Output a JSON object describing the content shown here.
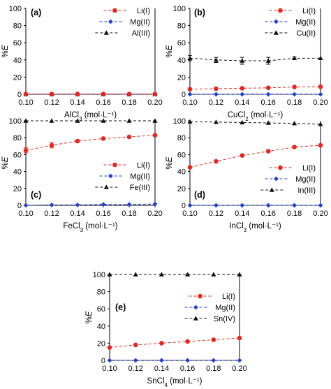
{
  "series_style": [
    {
      "key": "li",
      "color": "#e8251f",
      "marker": "circle",
      "dash": "4,3"
    },
    {
      "key": "mg",
      "color": "#1f3fd6",
      "marker": "diamond",
      "dash": "4,3"
    },
    {
      "key": "m",
      "color": "#111111",
      "marker": "triangle",
      "dash": "4,3"
    }
  ],
  "chart_data": [
    {
      "type": "line",
      "panel_label": "(a)",
      "x": [
        0.1,
        0.12,
        0.14,
        0.16,
        0.18,
        0.2
      ],
      "x_ticks": [
        "0.10",
        "0.12",
        "0.14",
        "0.16",
        "0.18",
        "0.20"
      ],
      "xlabel": {
        "pre": "AlCl",
        "sub": "3",
        "post": " (mol·L⁻¹)"
      },
      "ylabel": {
        "pre": "%",
        "it": "E"
      },
      "y_ticks": [
        "0",
        "20",
        "40",
        "60",
        "80",
        "100"
      ],
      "ylim": [
        0,
        100
      ],
      "legend": [
        "Li(I)",
        "Mg(II)",
        "Al(III)"
      ],
      "series": [
        {
          "name": "Li(I)",
          "values": [
            0.3,
            0.3,
            0.3,
            0.3,
            0.3,
            0.3
          ]
        },
        {
          "name": "Mg(II)",
          "values": [
            0,
            0,
            0,
            0,
            0,
            0
          ]
        },
        {
          "name": "Al(III)",
          "values": [
            0,
            0,
            0,
            0,
            0,
            0
          ]
        }
      ]
    },
    {
      "type": "line",
      "panel_label": "(b)",
      "x": [
        0.1,
        0.12,
        0.14,
        0.16,
        0.18,
        0.2
      ],
      "x_ticks": [
        "0.10",
        "0.12",
        "0.14",
        "0.16",
        "0.18",
        "0.20"
      ],
      "xlabel": {
        "pre": "CuCl",
        "sub": "2",
        "post": " (mol·L⁻¹)"
      },
      "ylabel": {
        "pre": "%",
        "it": "E"
      },
      "y_ticks": [
        "0",
        "20",
        "40",
        "60",
        "80",
        "100"
      ],
      "ylim": [
        0,
        100
      ],
      "legend": [
        "Li(I)",
        "Mg(II)",
        "Cu(II)"
      ],
      "series": [
        {
          "name": "Li(I)",
          "values": [
            6,
            6.5,
            7,
            7.5,
            8.5,
            8.8
          ]
        },
        {
          "name": "Mg(II)",
          "values": [
            0,
            0,
            0,
            0,
            0,
            0
          ]
        },
        {
          "name": "Cu(II)",
          "values": [
            42,
            40,
            39,
            39,
            42,
            42
          ],
          "errors": [
            3,
            3,
            4,
            4,
            1.5,
            0
          ]
        }
      ]
    },
    {
      "type": "line",
      "panel_label": "(c)",
      "x": [
        0.1,
        0.12,
        0.14,
        0.16,
        0.18,
        0.2
      ],
      "x_ticks": [
        "0.10",
        "0.12",
        "0.14",
        "0.16",
        "0.18",
        "0.20"
      ],
      "xlabel": {
        "pre": "FeCl",
        "sub": "3",
        "post": " (mol·L⁻¹)"
      },
      "ylabel": {
        "pre": "%",
        "it": "E"
      },
      "y_ticks": [
        "0",
        "20",
        "40",
        "60",
        "80",
        "100"
      ],
      "ylim": [
        0,
        100
      ],
      "legend": [
        "Li(I)",
        "Mg(II)",
        "Fe(III)"
      ],
      "series": [
        {
          "name": "Li(I)",
          "values": [
            65,
            71,
            76,
            79,
            81,
            83
          ],
          "errors": [
            3,
            3,
            1.5,
            1,
            1,
            1
          ]
        },
        {
          "name": "Mg(II)",
          "values": [
            0,
            0.5,
            0.5,
            1,
            1,
            1.5
          ]
        },
        {
          "name": "Fe(III)",
          "values": [
            100,
            100,
            100,
            100,
            100,
            100
          ]
        }
      ]
    },
    {
      "type": "line",
      "panel_label": "(d)",
      "x": [
        0.1,
        0.12,
        0.14,
        0.16,
        0.18,
        0.2
      ],
      "x_ticks": [
        "0.10",
        "0.12",
        "0.14",
        "0.16",
        "0.18",
        "0.20"
      ],
      "xlabel": {
        "pre": "InCl",
        "sub": "3",
        "post": " (mol·L⁻¹)"
      },
      "ylabel": {
        "pre": "%",
        "it": "E"
      },
      "y_ticks": [
        "0",
        "20",
        "40",
        "60",
        "80",
        "100"
      ],
      "ylim": [
        0,
        100
      ],
      "legend": [
        "Li(I)",
        "Mg(II)",
        "In(III)"
      ],
      "series": [
        {
          "name": "Li(I)",
          "values": [
            45,
            52,
            59,
            64,
            69,
            71
          ]
        },
        {
          "name": "Mg(II)",
          "values": [
            0,
            0,
            0,
            0,
            0,
            0
          ]
        },
        {
          "name": "In(III)",
          "values": [
            99,
            98.5,
            98,
            97.5,
            97,
            96
          ]
        }
      ]
    },
    {
      "type": "line",
      "panel_label": "(e)",
      "x": [
        0.1,
        0.12,
        0.14,
        0.16,
        0.18,
        0.2
      ],
      "x_ticks": [
        "0.10",
        "0.12",
        "0.14",
        "0.16",
        "0.18",
        "0.20"
      ],
      "xlabel": {
        "pre": "SnCl",
        "sub": "4",
        "post": " (mol·L⁻¹)"
      },
      "ylabel": {
        "pre": "%",
        "it": "E"
      },
      "y_ticks": [
        "0",
        "20",
        "40",
        "60",
        "80",
        "100"
      ],
      "ylim": [
        0,
        100
      ],
      "legend": [
        "Li(I)",
        "Mg(II)",
        "Sn(IV)"
      ],
      "series": [
        {
          "name": "Li(I)",
          "values": [
            15,
            18,
            20,
            22,
            24,
            26
          ]
        },
        {
          "name": "Mg(II)",
          "values": [
            0,
            0,
            0,
            0,
            0,
            0
          ]
        },
        {
          "name": "Sn(IV)",
          "values": [
            100,
            100,
            100,
            100,
            100,
            100
          ]
        }
      ]
    }
  ]
}
